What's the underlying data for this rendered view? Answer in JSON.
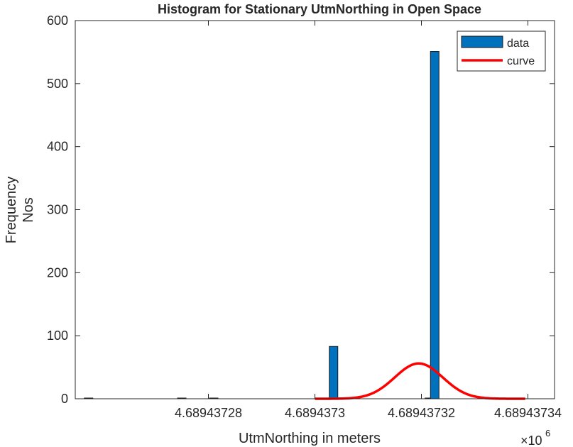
{
  "chart_data": {
    "type": "bar",
    "title": "Histogram for Stationary UtmNorthing in Open Space",
    "xlabel": "UtmNorthing in meters",
    "ylabel_lines": [
      "Frequency",
      "Nos"
    ],
    "x_exponent_base": "×10",
    "x_exponent_power": "6",
    "xlim": [
      4.689437255,
      4.689437345
    ],
    "ylim": [
      0,
      600
    ],
    "xticks": [
      4.68943728,
      4.6894373,
      4.68943732,
      4.68943734
    ],
    "xtick_labels": [
      "4.68943728",
      "4.6894373",
      "4.68943732",
      "4.68943734"
    ],
    "yticks": [
      0,
      100,
      200,
      300,
      400,
      500,
      600
    ],
    "ytick_labels": [
      "0",
      "100",
      "200",
      "300",
      "400",
      "500",
      "600"
    ],
    "bar_width": 1.6e-09,
    "bars": [
      {
        "x": 4.6894372575,
        "value": 1
      },
      {
        "x": 4.689437275,
        "value": 0
      },
      {
        "x": 4.689437281,
        "value": 1
      },
      {
        "x": 4.689437302,
        "value": 0
      },
      {
        "x": 4.6894373035,
        "value": 83
      },
      {
        "x": 4.6894373215,
        "value": 0
      },
      {
        "x": 4.6894373225,
        "value": 551
      }
    ],
    "curve": {
      "mean": 4.6894373195,
      "sigma": 4.5e-09,
      "peak": 56,
      "x_start": 4.6894373,
      "x_end": 4.6894373395
    },
    "legend": {
      "position": "top-right",
      "entries": [
        "data",
        "curve"
      ]
    },
    "colors": {
      "bars": "#0072BD",
      "bar_edge": "#1a1a1a",
      "curve": "#FF0000",
      "axes": "#262626"
    }
  }
}
